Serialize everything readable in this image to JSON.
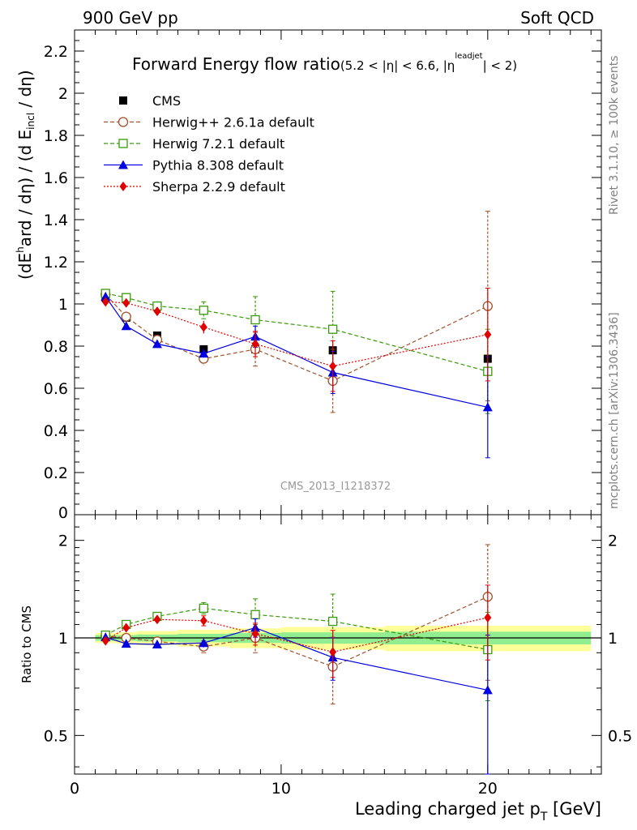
{
  "header": {
    "left": "900 GeV pp",
    "right": "Soft QCD"
  },
  "side": {
    "rivet": "Rivet 3.1.10, ≥ 100k events",
    "mcplots": "mcplots.cern.ch [arXiv:1306.3436]"
  },
  "colors": {
    "cms": "#000000",
    "herwigpp": "#a0522d",
    "herwig7": "#3a9a0a",
    "pythia": "#0000e0",
    "sherpa": "#e00000",
    "band_inner": "#90ee90",
    "band_outer": "#ffff99"
  },
  "chart_data": [
    {
      "type": "scatter",
      "title": "Forward Energy flow ratio",
      "title_cut": "(5.2 < |η| < 6.6, |η",
      "title_cut_sup": "leadjet",
      "title_cut_end": "| < 2)",
      "ylabel_a": "(dE",
      "ylabel_sup": "h",
      "ylabel_b": "ard / dη) / (d E",
      "ylabel_sub": "incl",
      "ylabel_c": " / dη)",
      "analysis_id": "CMS_2013_I1218372",
      "xlim": [
        0,
        25.5
      ],
      "ylim": [
        0,
        2.3
      ],
      "x_ticks": [
        0,
        10,
        20
      ],
      "y_ticks": [
        0.2,
        0.4,
        0.6,
        0.8,
        1.0,
        1.2,
        1.4,
        1.6,
        1.8,
        2.0,
        2.2
      ],
      "y_tick_labels": [
        "0.2",
        "0.4",
        "0.6",
        "0.8",
        "1",
        "1.2",
        "1.4",
        "1.6",
        "1.8",
        "2",
        "2.2"
      ],
      "y_tick_zero_label": "0",
      "legend_position": "top-left",
      "x": [
        1.5,
        2.5,
        4.0,
        6.25,
        8.75,
        12.5,
        20.0
      ],
      "series": [
        {
          "name": "CMS",
          "marker": "filled-square",
          "line": "none",
          "values": [
            1.03,
            0.935,
            0.85,
            0.785,
            0.785,
            0.78,
            0.74
          ],
          "errors": [
            0.01,
            0.01,
            0.01,
            0.01,
            0.01,
            0.01,
            0.01
          ]
        },
        {
          "name": "Herwig++ 2.6.1a default",
          "marker": "open-circle",
          "line": "dashed",
          "values": [
            1.045,
            0.94,
            0.83,
            0.74,
            0.785,
            0.635,
            0.99
          ],
          "errors": [
            0.01,
            0.02,
            0.02,
            0.03,
            0.08,
            0.15,
            0.45
          ]
        },
        {
          "name": "Herwig 7.2.1 default",
          "marker": "open-square",
          "line": "dashed",
          "values": [
            1.05,
            1.03,
            0.99,
            0.97,
            0.925,
            0.88,
            0.68
          ],
          "errors": [
            0.01,
            0.02,
            0.02,
            0.04,
            0.11,
            0.18,
            0.2
          ]
        },
        {
          "name": "Pythia 8.308 default",
          "marker": "filled-triangle",
          "line": "solid",
          "values": [
            1.035,
            0.895,
            0.81,
            0.765,
            0.845,
            0.675,
            0.51
          ],
          "errors": [
            0.01,
            0.01,
            0.01,
            0.02,
            0.05,
            0.1,
            0.24
          ]
        },
        {
          "name": "Sherpa 2.2.9 default",
          "marker": "filled-diamond",
          "line": "dotted",
          "values": [
            1.01,
            1.005,
            0.965,
            0.89,
            0.81,
            0.705,
            0.855
          ],
          "errors": [
            0.01,
            0.02,
            0.02,
            0.03,
            0.06,
            0.12,
            0.22
          ]
        }
      ]
    },
    {
      "type": "scatter",
      "title": "",
      "xlabel": "Leading charged jet p",
      "xlabel_sub": "T",
      "xlabel_unit": " [GeV]",
      "ylabel": "Ratio to CMS",
      "scale": "log",
      "xlim": [
        0,
        25.5
      ],
      "ylim": [
        0.38,
        2.4
      ],
      "x_ticks": [
        0,
        10,
        20
      ],
      "x_tick_labels": [
        "0",
        "10",
        "20"
      ],
      "y_ticks": [
        0.5,
        1,
        2
      ],
      "y_tick_labels": [
        "0.5",
        "1",
        "2"
      ],
      "x": [
        1.5,
        2.5,
        4.0,
        6.25,
        8.75,
        12.5,
        20.0
      ],
      "bands": {
        "x_edges": [
          1.0,
          2.0,
          3.0,
          5.0,
          7.5,
          10.0,
          15.0,
          25.0
        ],
        "inner_half": [
          0.02,
          0.02,
          0.025,
          0.03,
          0.035,
          0.04,
          0.045
        ],
        "outer_half": [
          0.035,
          0.04,
          0.05,
          0.06,
          0.07,
          0.08,
          0.09
        ]
      },
      "series": [
        {
          "name": "Herwig++ 2.6.1a default",
          "marker": "open-circle",
          "line": "dashed",
          "values": [
            1.015,
            1.0,
            0.975,
            0.94,
            1.0,
            0.815,
            1.34
          ],
          "errors": [
            0.01,
            0.02,
            0.02,
            0.04,
            0.1,
            0.19,
            0.6
          ]
        },
        {
          "name": "Herwig 7.2.1 default",
          "marker": "open-square",
          "line": "dashed",
          "values": [
            1.02,
            1.1,
            1.165,
            1.235,
            1.18,
            1.125,
            0.92
          ],
          "errors": [
            0.01,
            0.02,
            0.02,
            0.05,
            0.14,
            0.24,
            0.28
          ]
        },
        {
          "name": "Pythia 8.308 default",
          "marker": "filled-triangle",
          "line": "solid",
          "values": [
            1.005,
            0.96,
            0.955,
            0.965,
            1.075,
            0.87,
            0.69
          ],
          "errors": [
            0.01,
            0.01,
            0.01,
            0.03,
            0.07,
            0.13,
            0.33
          ]
        },
        {
          "name": "Sherpa 2.2.9 default",
          "marker": "filled-diamond",
          "line": "dotted",
          "values": [
            0.98,
            1.075,
            1.14,
            1.13,
            1.03,
            0.905,
            1.155
          ],
          "errors": [
            0.01,
            0.02,
            0.02,
            0.04,
            0.08,
            0.15,
            0.3
          ]
        }
      ]
    }
  ]
}
